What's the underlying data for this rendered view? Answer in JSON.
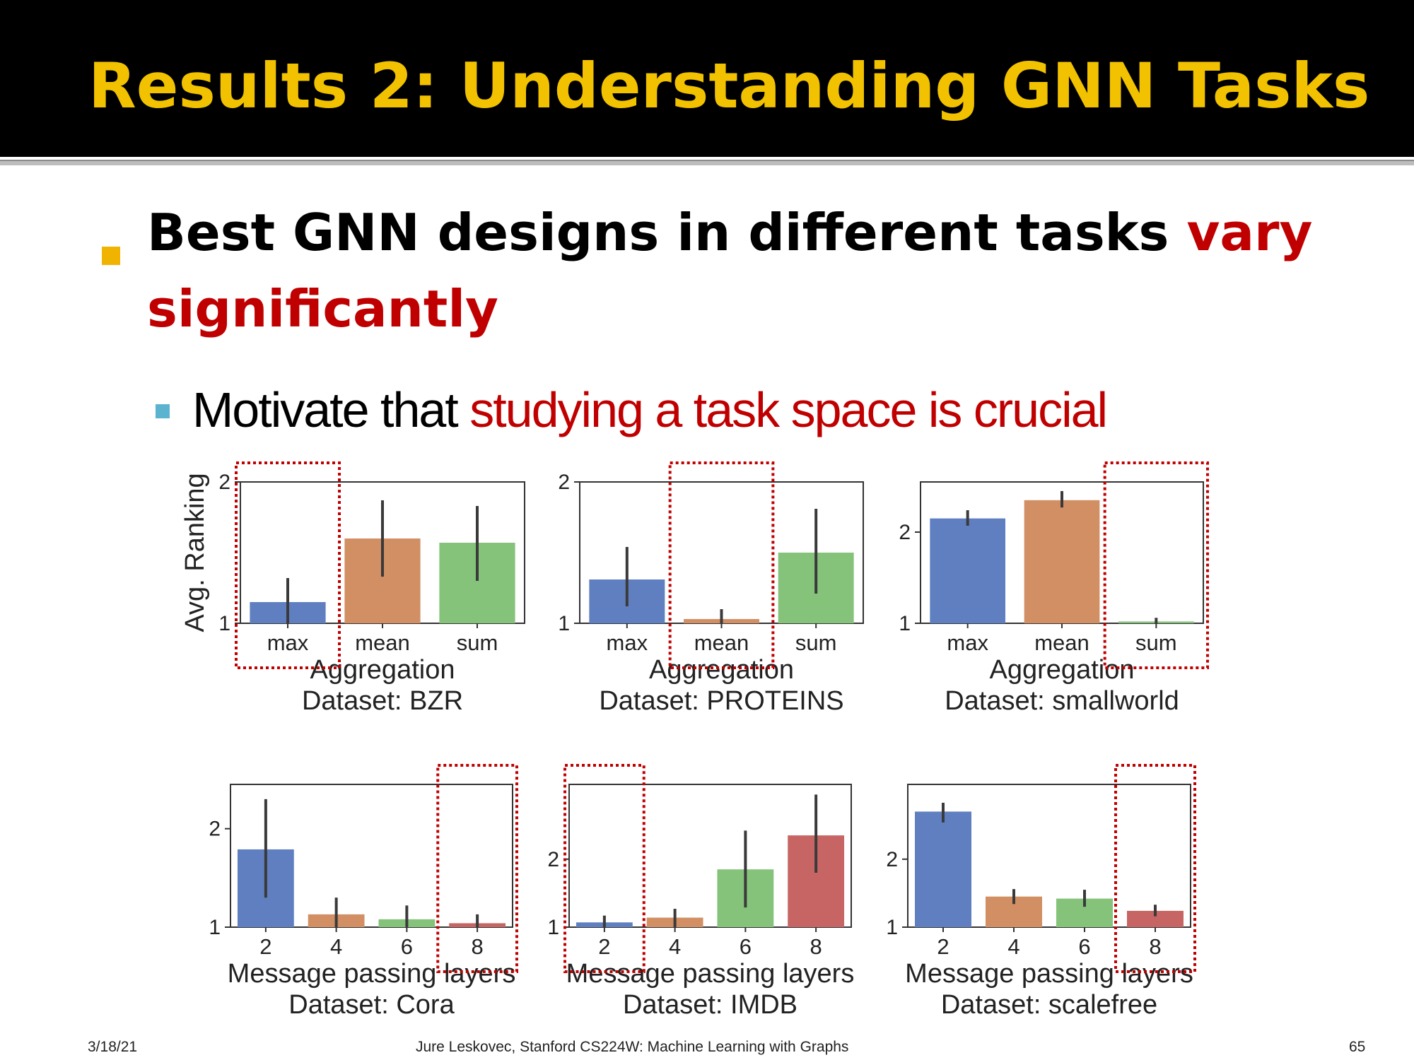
{
  "slide": {
    "title": "Results 2: Understanding GNN Tasks",
    "bullet1_black": "Best GNN designs in different tasks ",
    "bullet1_red": "vary significantly",
    "bullet2_black": "Motivate that ",
    "bullet2_red": "studying a task space is crucial",
    "footer_date": "3/18/21",
    "footer_center": "Jure Leskovec, Stanford CS224W: Machine Learning with Graphs",
    "footer_page": "65"
  },
  "colors": {
    "title": "#f2c200",
    "accent_red": "#c00000",
    "bullet_orange": "#f0b400",
    "bullet_blue": "#5bb3d0",
    "series": [
      "#5f7fc0",
      "#d18f63",
      "#85c27a",
      "#c66564"
    ]
  },
  "chart_data": [
    {
      "type": "bar",
      "categories": [
        "max",
        "mean",
        "sum"
      ],
      "values": [
        1.15,
        1.6,
        1.57
      ],
      "errors": [
        [
          1.0,
          1.32
        ],
        [
          1.33,
          1.87
        ],
        [
          1.3,
          1.83
        ]
      ],
      "ylabel": "Avg. Ranking",
      "xlabel": "Aggregation",
      "subtitle": "Dataset: BZR",
      "ylim": [
        1,
        2
      ],
      "yticks": [
        1,
        2
      ],
      "highlight": 0
    },
    {
      "type": "bar",
      "categories": [
        "max",
        "mean",
        "sum"
      ],
      "values": [
        1.31,
        1.03,
        1.5
      ],
      "errors": [
        [
          1.12,
          1.54
        ],
        [
          1.0,
          1.1
        ],
        [
          1.21,
          1.81
        ]
      ],
      "ylabel": "",
      "xlabel": "Aggregation",
      "subtitle": "Dataset: PROTEINS",
      "ylim": [
        1,
        2
      ],
      "yticks": [
        1,
        2
      ],
      "highlight": 1
    },
    {
      "type": "bar",
      "categories": [
        "max",
        "mean",
        "sum"
      ],
      "values": [
        2.15,
        2.35,
        1.02
      ],
      "errors": [
        [
          2.07,
          2.24
        ],
        [
          2.27,
          2.45
        ],
        [
          1.0,
          1.06
        ]
      ],
      "ylabel": "",
      "xlabel": "Aggregation",
      "subtitle": "Dataset: smallworld",
      "ylim": [
        1,
        2.55
      ],
      "yticks": [
        1,
        2
      ],
      "highlight": 2
    },
    {
      "type": "bar",
      "categories": [
        "2",
        "4",
        "6",
        "8"
      ],
      "values": [
        1.79,
        1.13,
        1.08,
        1.04
      ],
      "errors": [
        [
          1.3,
          2.3
        ],
        [
          1.0,
          1.3
        ],
        [
          1.0,
          1.22
        ],
        [
          1.0,
          1.13
        ]
      ],
      "ylabel": "",
      "xlabel": "Message passing layers",
      "subtitle": "Dataset: Cora",
      "ylim": [
        1,
        2.45
      ],
      "yticks": [
        1,
        2
      ],
      "highlight": 3
    },
    {
      "type": "bar",
      "categories": [
        "2",
        "4",
        "6",
        "8"
      ],
      "values": [
        1.07,
        1.14,
        1.85,
        2.35
      ],
      "errors": [
        [
          1.0,
          1.17
        ],
        [
          1.0,
          1.27
        ],
        [
          1.29,
          2.42
        ],
        [
          1.8,
          2.95
        ]
      ],
      "ylabel": "",
      "xlabel": "Message passing layers",
      "subtitle": "Dataset: IMDB",
      "ylim": [
        1,
        3.1
      ],
      "yticks": [
        1,
        2
      ],
      "highlight": 0
    },
    {
      "type": "bar",
      "categories": [
        "2",
        "4",
        "6",
        "8"
      ],
      "values": [
        2.7,
        1.45,
        1.42,
        1.24
      ],
      "errors": [
        [
          2.54,
          2.83
        ],
        [
          1.34,
          1.56
        ],
        [
          1.3,
          1.55
        ],
        [
          1.16,
          1.33
        ]
      ],
      "ylabel": "",
      "xlabel": "Message passing layers",
      "subtitle": "Dataset: scalefree",
      "ylim": [
        1,
        3.1
      ],
      "yticks": [
        1,
        2
      ],
      "highlight": 3
    }
  ]
}
